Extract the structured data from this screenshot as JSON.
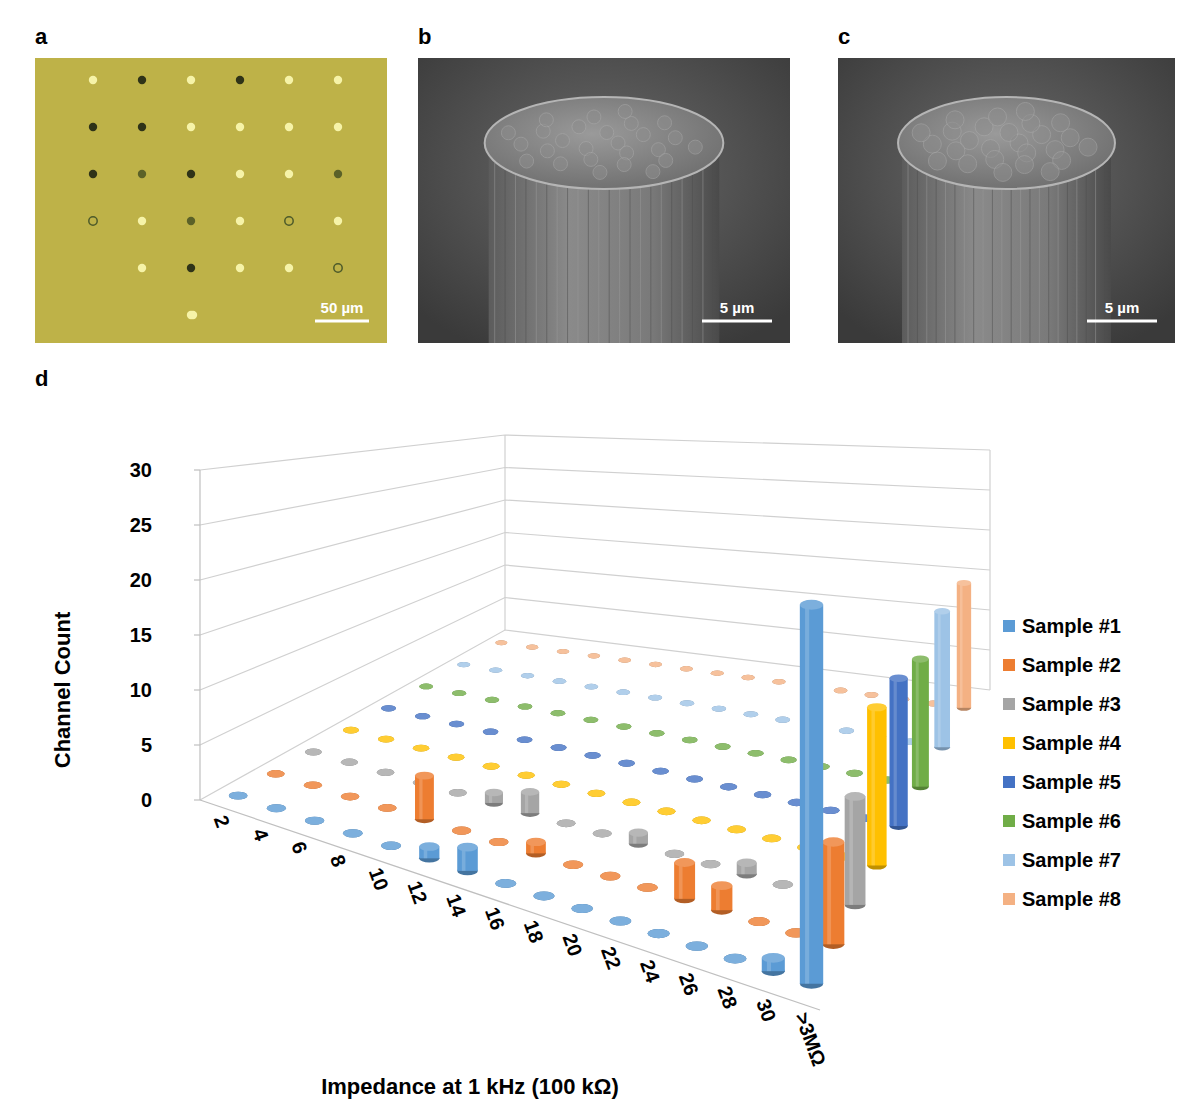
{
  "panels": [
    {
      "label": "a",
      "scale_bar": "50 µm"
    },
    {
      "label": "b",
      "scale_bar": "5 µm"
    },
    {
      "label": "c",
      "scale_bar": "5 µm"
    }
  ],
  "chart_data": {
    "label": "d",
    "type": "bar",
    "x_label": "Impedance at 1 kHz (100 kΩ)",
    "y_label": "Channel Count",
    "categories": [
      "2",
      "4",
      "6",
      "8",
      "10",
      "12",
      "14",
      "16",
      "18",
      "20",
      "22",
      "24",
      "26",
      "28",
      "30",
      ">3MΩ"
    ],
    "ylim": [
      0,
      30
    ],
    "yticks": [
      0,
      5,
      10,
      15,
      20,
      25,
      30
    ],
    "grid": true,
    "legend": "right",
    "series": [
      {
        "name": "Sample #1",
        "color": "#5b9bd5",
        "values": [
          0,
          0,
          0,
          0,
          0,
          1,
          2,
          0,
          0,
          0,
          0,
          0,
          0,
          0,
          1,
          28
        ]
      },
      {
        "name": "Sample #2",
        "color": "#ed7d31",
        "values": [
          0,
          0,
          0,
          0,
          4,
          0,
          0,
          1,
          0,
          0,
          0,
          3,
          2,
          0,
          0,
          8
        ]
      },
      {
        "name": "Sample #3",
        "color": "#a5a5a5",
        "values": [
          0,
          0,
          0,
          0,
          0,
          1,
          2,
          0,
          0,
          1,
          0,
          0,
          1,
          0,
          0,
          9
        ]
      },
      {
        "name": "Sample #4",
        "color": "#ffc000",
        "values": [
          0,
          0,
          0,
          0,
          0,
          0,
          0,
          0,
          0,
          0,
          0,
          0,
          0,
          0,
          0,
          14
        ]
      },
      {
        "name": "Sample #5",
        "color": "#4472c4",
        "values": [
          0,
          0,
          0,
          0,
          0,
          0,
          0,
          0,
          0,
          0,
          0,
          0,
          0,
          0,
          0,
          14
        ]
      },
      {
        "name": "Sample #6",
        "color": "#70ad47",
        "values": [
          0,
          0,
          0,
          0,
          0,
          0,
          0,
          0,
          0,
          0,
          0,
          0,
          0,
          0,
          0,
          13
        ]
      },
      {
        "name": "Sample #7",
        "color": "#9dc3e6",
        "values": [
          0,
          0,
          0,
          0,
          0,
          0,
          0,
          0,
          0,
          0,
          0,
          0,
          0,
          0,
          0,
          15
        ]
      },
      {
        "name": "Sample #8",
        "color": "#f4b183",
        "values": [
          0,
          0,
          0,
          0,
          0,
          0,
          0,
          0,
          0,
          0,
          0,
          0,
          0,
          0,
          0,
          15
        ]
      }
    ]
  }
}
